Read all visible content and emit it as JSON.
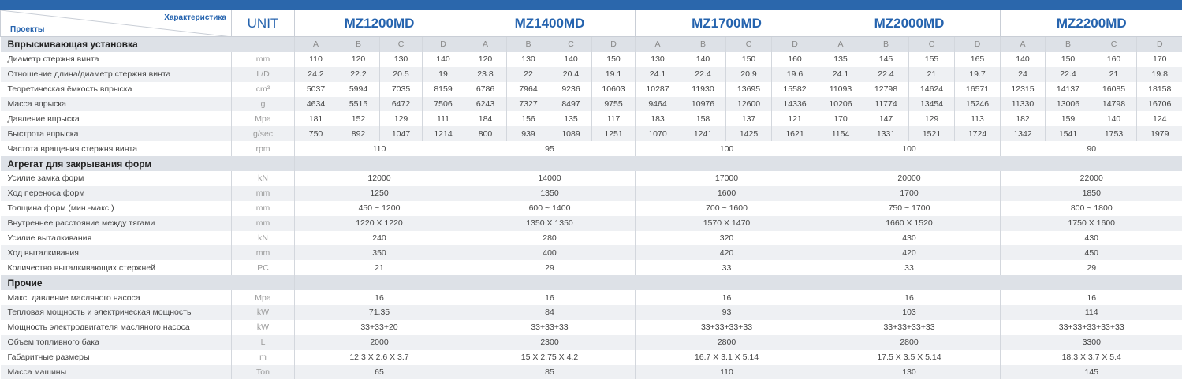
{
  "header": {
    "corner_top": "Характеристика",
    "corner_bottom": "Проекты",
    "unit": "UNIT",
    "models": [
      "MZ1200MD",
      "MZ1400MD",
      "MZ1700MD",
      "MZ2000MD",
      "MZ2200MD"
    ]
  },
  "sub_columns": [
    "A",
    "B",
    "C",
    "D"
  ],
  "sections": [
    {
      "title": "Впрыскивающая установка",
      "rows": [
        {
          "label": "Диаметр стержня винта",
          "unit": "mm",
          "values": [
            "110",
            "120",
            "130",
            "140",
            "120",
            "130",
            "140",
            "150",
            "130",
            "140",
            "150",
            "160",
            "135",
            "145",
            "155",
            "165",
            "140",
            "150",
            "160",
            "170"
          ]
        },
        {
          "label": "Отношение длина/диаметр стержня винта",
          "unit": "L/D",
          "values": [
            "24.2",
            "22.2",
            "20.5",
            "19",
            "23.8",
            "22",
            "20.4",
            "19.1",
            "24.1",
            "22.4",
            "20.9",
            "19.6",
            "24.1",
            "22.4",
            "21",
            "19.7",
            "24",
            "22.4",
            "21",
            "19.8"
          ]
        },
        {
          "label": "Теоретическая ёмкость впрыска",
          "unit": "cm³",
          "values": [
            "5037",
            "5994",
            "7035",
            "8159",
            "6786",
            "7964",
            "9236",
            "10603",
            "10287",
            "11930",
            "13695",
            "15582",
            "11093",
            "12798",
            "14624",
            "16571",
            "12315",
            "14137",
            "16085",
            "18158"
          ]
        },
        {
          "label": "Масса впрыска",
          "unit": "g",
          "values": [
            "4634",
            "5515",
            "6472",
            "7506",
            "6243",
            "7327",
            "8497",
            "9755",
            "9464",
            "10976",
            "12600",
            "14336",
            "10206",
            "11774",
            "13454",
            "15246",
            "11330",
            "13006",
            "14798",
            "16706"
          ]
        },
        {
          "label": "Давление впрыска",
          "unit": "Mpa",
          "values": [
            "181",
            "152",
            "129",
            "111",
            "184",
            "156",
            "135",
            "117",
            "183",
            "158",
            "137",
            "121",
            "170",
            "147",
            "129",
            "113",
            "182",
            "159",
            "140",
            "124"
          ]
        },
        {
          "label": "Быстрота впрыска",
          "unit": "g/sec",
          "values": [
            "750",
            "892",
            "1047",
            "1214",
            "800",
            "939",
            "1089",
            "1251",
            "1070",
            "1241",
            "1425",
            "1621",
            "1154",
            "1331",
            "1521",
            "1724",
            "1342",
            "1541",
            "1753",
            "1979"
          ]
        },
        {
          "label": "Частота вращения стержня винта",
          "unit": "rpm",
          "values": [
            "110",
            "95",
            "100",
            "100",
            "90"
          ]
        }
      ]
    },
    {
      "title": "Агрегат для закрывания форм",
      "rows": [
        {
          "label": "Усилие замка форм",
          "unit": "kN",
          "values": [
            "12000",
            "14000",
            "17000",
            "20000",
            "22000"
          ]
        },
        {
          "label": "Ход переноса форм",
          "unit": "mm",
          "values": [
            "1250",
            "1350",
            "1600",
            "1700",
            "1850"
          ]
        },
        {
          "label": "Толщина форм (мин.-макс.)",
          "unit": "mm",
          "values": [
            "450 ~ 1200",
            "600 ~ 1400",
            "700 ~ 1600",
            "750 ~ 1700",
            "800 ~ 1800"
          ]
        },
        {
          "label": "Внутреннее расстояние между тягами",
          "unit": "mm",
          "values": [
            "1220 X 1220",
            "1350 X 1350",
            "1570 X 1470",
            "1660 X 1520",
            "1750 X 1600"
          ]
        },
        {
          "label": "Усилие выталкивания",
          "unit": "kN",
          "values": [
            "240",
            "280",
            "320",
            "430",
            "430"
          ]
        },
        {
          "label": "Ход выталкивания",
          "unit": "mm",
          "values": [
            "350",
            "400",
            "420",
            "420",
            "450"
          ]
        },
        {
          "label": "Количество выталкивающих стержней",
          "unit": "PC",
          "values": [
            "21",
            "29",
            "33",
            "33",
            "29"
          ]
        }
      ]
    },
    {
      "title": "Прочие",
      "rows": [
        {
          "label": "Макс. давление масляного насоса",
          "unit": "Mpa",
          "values": [
            "16",
            "16",
            "16",
            "16",
            "16"
          ]
        },
        {
          "label": "Тепловая мощность и электрическая мощность",
          "unit": "kW",
          "values": [
            "71.35",
            "84",
            "93",
            "103",
            "114"
          ]
        },
        {
          "label": "Мощность электродвигателя масляного насоса",
          "unit": "kW",
          "values": [
            "33+33+20",
            "33+33+33",
            "33+33+33+33",
            "33+33+33+33",
            "33+33+33+33+33"
          ]
        },
        {
          "label": "Объем топливного бака",
          "unit": "L",
          "values": [
            "2000",
            "2300",
            "2800",
            "2800",
            "3300"
          ]
        },
        {
          "label": "Габаритные размеры",
          "unit": "m",
          "values": [
            "12.3 X 2.6 X 3.7",
            "15 X 2.75 X 4.2",
            "16.7 X 3.1 X 5.14",
            "17.5 X 3.5 X 5.14",
            "18.3 X 3.7 X 5.4"
          ]
        },
        {
          "label": "Масса машины",
          "unit": "Ton",
          "values": [
            "65",
            "85",
            "110",
            "130",
            "145"
          ]
        }
      ]
    }
  ]
}
